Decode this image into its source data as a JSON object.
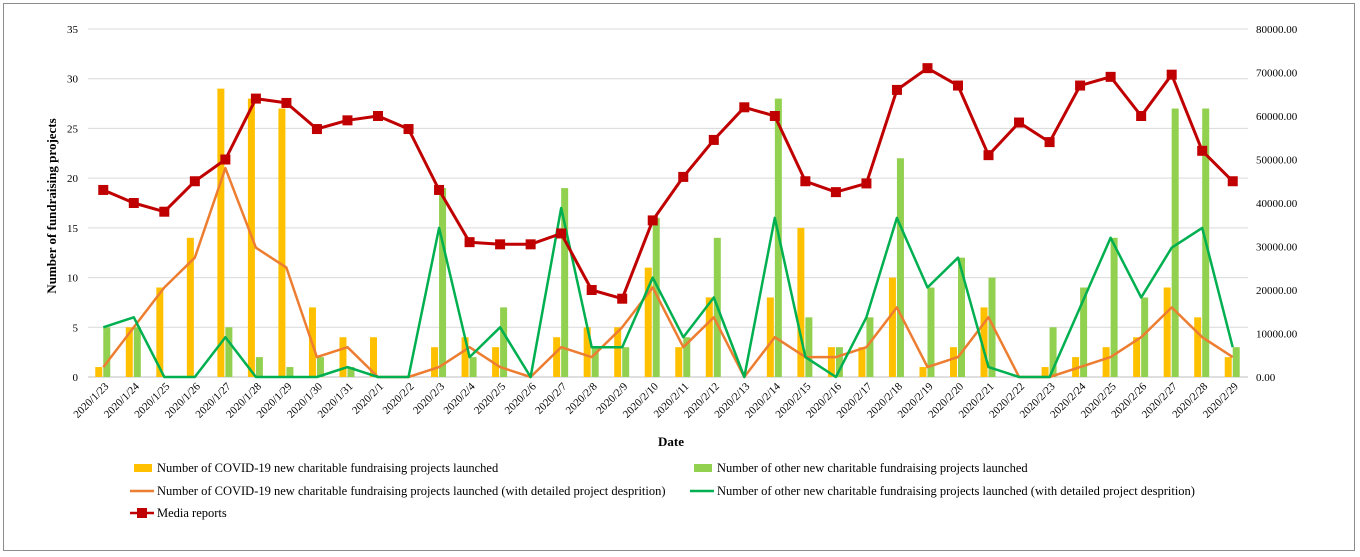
{
  "chart_data": {
    "type": "bar",
    "title": "",
    "xlabel": "Date",
    "ylabel": "Number of fundraising projects",
    "ylim": [
      0,
      35
    ],
    "y2lim": [
      0,
      80000
    ],
    "y_ticks": [
      "0",
      "5",
      "10",
      "15",
      "20",
      "25",
      "30",
      "35"
    ],
    "y2_ticks": [
      "0.00",
      "10000.00",
      "20000.00",
      "30000.00",
      "40000.00",
      "50000.00",
      "60000.00",
      "70000.00",
      "80000.00"
    ],
    "grid": true,
    "legend_position": "bottom",
    "categories": [
      "2020/1/23",
      "2020/1/24",
      "2020/1/25",
      "2020/1/26",
      "2020/1/27",
      "2020/1/28",
      "2020/1/29",
      "2020/1/30",
      "2020/1/31",
      "2020/2/1",
      "2020/2/2",
      "2020/2/3",
      "2020/2/4",
      "2020/2/5",
      "2020/2/6",
      "2020/2/7",
      "2020/2/8",
      "2020/2/9",
      "2020/2/10",
      "2020/2/11",
      "2020/2/12",
      "2020/2/13",
      "2020/2/14",
      "2020/2/15",
      "2020/2/16",
      "2020/2/17",
      "2020/2/18",
      "2020/2/19",
      "2020/2/20",
      "2020/2/21",
      "2020/2/22",
      "2020/2/23",
      "2020/2/24",
      "2020/2/25",
      "2020/2/26",
      "2020/2/27",
      "2020/2/28",
      "2020/2/29"
    ],
    "series": [
      {
        "name": "Number of COVID-19 new charitable fundraising projects launched",
        "type": "bar",
        "axis": "left",
        "color": "#FFC000",
        "values": [
          1,
          5,
          9,
          14,
          29,
          28,
          27,
          7,
          4,
          4,
          0,
          3,
          4,
          3,
          0,
          4,
          5,
          5,
          11,
          3,
          8,
          0,
          8,
          15,
          3,
          3,
          10,
          1,
          3,
          7,
          0,
          1,
          2,
          3,
          4,
          9,
          6,
          2
        ]
      },
      {
        "name": "Number of other new  charitable fundraising projects launched",
        "type": "bar",
        "axis": "left",
        "color": "#92D050",
        "values": [
          5,
          5,
          0,
          0,
          5,
          2,
          1,
          2,
          1,
          0,
          0,
          19,
          2,
          7,
          0,
          19,
          3,
          3,
          16,
          4,
          14,
          0,
          28,
          6,
          3,
          6,
          22,
          9,
          12,
          10,
          0,
          5,
          9,
          14,
          8,
          27,
          27,
          3
        ]
      },
      {
        "name": "Number of COVID-19 new charitable fundraising projects launched (with detailed project desprition)",
        "type": "line",
        "axis": "left",
        "color": "#ED7D31",
        "values": [
          1,
          5,
          9,
          12,
          21,
          13,
          11,
          2,
          3,
          0,
          0,
          1,
          3,
          1,
          0,
          3,
          2,
          5,
          9,
          3,
          6,
          0,
          4,
          2,
          2,
          3,
          7,
          1,
          2,
          6,
          0,
          0,
          1,
          2,
          4,
          7,
          4,
          2
        ]
      },
      {
        "name": "Number of other new charitable fundraising projects launched (with detailed project desprition)",
        "type": "line",
        "axis": "left",
        "color": "#00B050",
        "values": [
          5,
          6,
          0,
          0,
          4,
          0,
          0,
          0,
          1,
          0,
          0,
          15,
          2,
          5,
          0,
          17,
          3,
          3,
          10,
          4,
          8,
          0,
          16,
          2,
          0,
          6,
          16,
          9,
          12,
          1,
          0,
          0,
          7,
          14,
          8,
          13,
          15,
          3
        ]
      },
      {
        "name": "Media reports",
        "type": "line",
        "axis": "right",
        "color": "#C00000",
        "marker": "square",
        "values": [
          43000,
          40000,
          38000,
          45000,
          50000,
          64000,
          63000,
          57000,
          59000,
          60000,
          57000,
          43000,
          31000,
          30500,
          30500,
          33000,
          20000,
          18000,
          36000,
          46000,
          54500,
          62000,
          60000,
          45000,
          42500,
          44500,
          66000,
          71000,
          67000,
          51000,
          58500,
          54000,
          67000,
          69000,
          60000,
          69500,
          52000,
          45000
        ]
      }
    ]
  }
}
